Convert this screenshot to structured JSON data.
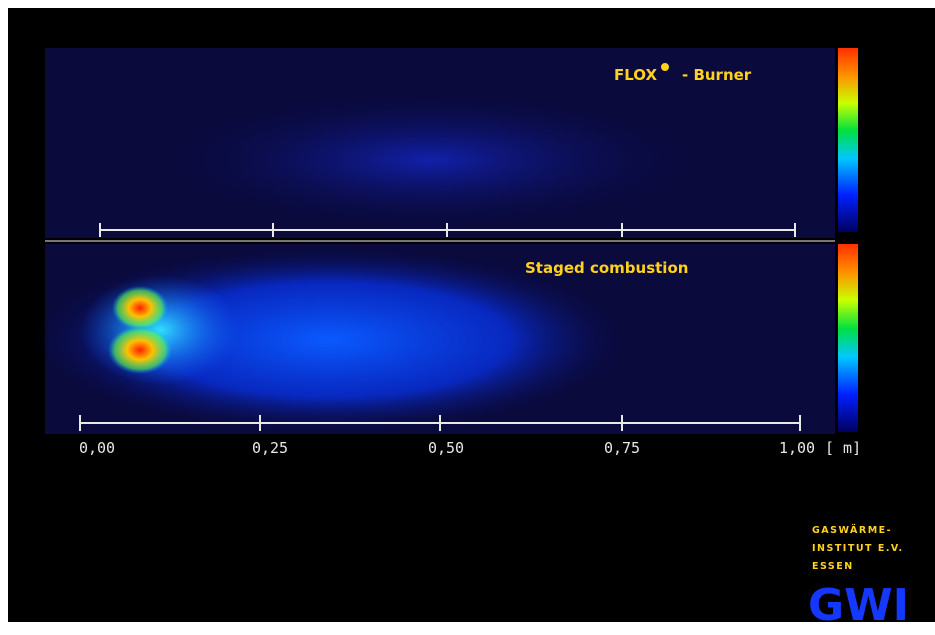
{
  "panels": {
    "top_label": "FLOX",
    "top_label_suffix": "- Burner",
    "bottom_label": "Staged combustion"
  },
  "scale": {
    "ticks": [
      "0,00",
      "0,25",
      "0,50",
      "0,75",
      "1,00"
    ],
    "unit": "[ m]"
  },
  "logo": {
    "line1": "GASWÄRME-",
    "line2": "INSTITUT E.V.",
    "line3": "ESSEN",
    "mark": "GWI"
  }
}
